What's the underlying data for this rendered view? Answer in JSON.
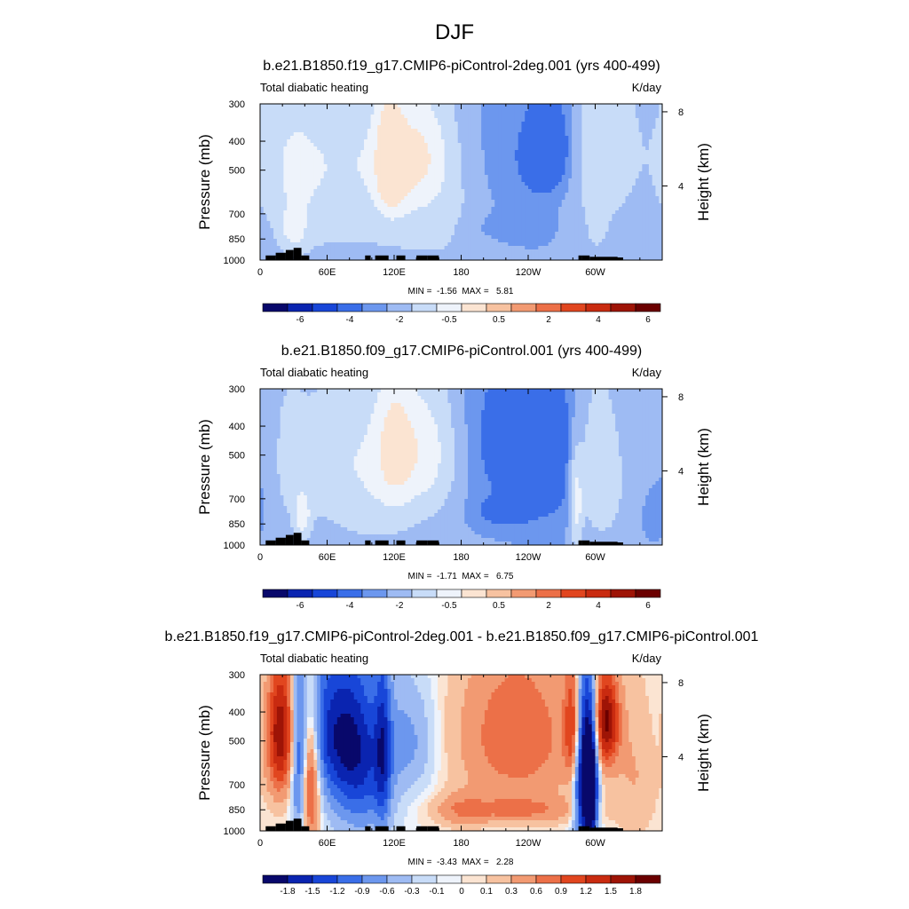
{
  "figure_title": "DJF",
  "colors": {
    "terrain": "#000000",
    "frame": "#000000",
    "palette": [
      "#08086b",
      "#0a24b0",
      "#1846d8",
      "#3a6ee8",
      "#6c97ee",
      "#9ebbf3",
      "#c8dcf8",
      "#eef3fb",
      "#fbe4d2",
      "#f7c2a0",
      "#f29a72",
      "#ec7048",
      "#e1461f",
      "#c92b10",
      "#9e1406",
      "#6b0000"
    ]
  },
  "chart_data": [
    {
      "type": "heatmap",
      "id": "p1",
      "title": "b.e21.B1850.f19_g17.CMIP6-piControl-2deg.001 (yrs 400-499)",
      "left_label": "Total diabatic heating",
      "right_label": "K/day",
      "xlabel": "",
      "ylabel": "Pressure (mb)",
      "ylabel_right": "Height (km)",
      "x_ticks": [
        "0",
        "60E",
        "120E",
        "180",
        "120W",
        "60W"
      ],
      "x_tick_values": [
        0,
        60,
        120,
        180,
        240,
        300
      ],
      "xlim": [
        0,
        360
      ],
      "y_ticks": [
        "300",
        "400",
        "500",
        "700",
        "850",
        "1000"
      ],
      "y_tick_values": [
        300,
        400,
        500,
        700,
        850,
        1000
      ],
      "ylim": [
        1000,
        300
      ],
      "y_right_ticks": [
        "8",
        "4"
      ],
      "y_right_tick_values": [
        8,
        4
      ],
      "stats": "MIN =  -1.56  MAX =   5.81",
      "colorbar_labels": [
        "-6",
        "-4",
        "-2",
        "-0.5",
        "0.5",
        "2",
        "4",
        "6"
      ],
      "base": 0.6,
      "blobs": [
        [
          25,
          520,
          22,
          280,
          2.6
        ],
        [
          30,
          800,
          8,
          90,
          2.5
        ],
        [
          85,
          420,
          40,
          160,
          1.8
        ],
        [
          70,
          650,
          40,
          250,
          1.4
        ],
        [
          115,
          420,
          8,
          160,
          3.2
        ],
        [
          120,
          500,
          10,
          120,
          3.8
        ],
        [
          145,
          440,
          18,
          140,
          3.6
        ],
        [
          140,
          600,
          40,
          300,
          1.6
        ],
        [
          175,
          750,
          30,
          250,
          0.8
        ],
        [
          265,
          420,
          15,
          120,
          -2.4
        ],
        [
          230,
          480,
          40,
          220,
          -1.2
        ],
        [
          215,
          780,
          25,
          60,
          -1.0
        ],
        [
          305,
          450,
          25,
          250,
          3.0
        ],
        [
          302,
          780,
          6,
          100,
          1.8
        ],
        [
          330,
          800,
          25,
          200,
          -0.4
        ],
        [
          12,
          720,
          10,
          150,
          -0.5
        ]
      ]
    },
    {
      "type": "heatmap",
      "id": "p2",
      "title": "b.e21.B1850.f09_g17.CMIP6-piControl.001 (yrs 400-499)",
      "left_label": "Total diabatic heating",
      "right_label": "K/day",
      "xlabel": "",
      "ylabel": "Pressure (mb)",
      "ylabel_right": "Height (km)",
      "x_ticks": [
        "0",
        "60E",
        "120E",
        "180",
        "120W",
        "60W"
      ],
      "x_tick_values": [
        0,
        60,
        120,
        180,
        240,
        300
      ],
      "xlim": [
        0,
        360
      ],
      "y_ticks": [
        "300",
        "400",
        "500",
        "700",
        "850",
        "1000"
      ],
      "y_tick_values": [
        300,
        400,
        500,
        700,
        850,
        1000
      ],
      "ylim": [
        1000,
        300
      ],
      "y_right_ticks": [
        "8",
        "4"
      ],
      "y_right_tick_values": [
        8,
        4
      ],
      "stats": "MIN =  -1.71  MAX =   6.75",
      "colorbar_labels": [
        "-6",
        "-4",
        "-2",
        "-0.5",
        "0.5",
        "2",
        "4",
        "6"
      ],
      "base": 0.6,
      "blobs": [
        [
          22,
          520,
          15,
          300,
          1.2
        ],
        [
          38,
          800,
          5,
          100,
          4.0
        ],
        [
          85,
          500,
          40,
          200,
          2.2
        ],
        [
          120,
          450,
          12,
          180,
          3.6
        ],
        [
          150,
          480,
          20,
          180,
          3.8
        ],
        [
          100,
          700,
          40,
          300,
          1.5
        ],
        [
          240,
          450,
          50,
          220,
          -2.0
        ],
        [
          220,
          780,
          20,
          60,
          -1.6
        ],
        [
          280,
          700,
          20,
          200,
          -0.6
        ],
        [
          283,
          720,
          4,
          180,
          4.5
        ],
        [
          300,
          550,
          12,
          220,
          3.0
        ],
        [
          315,
          600,
          20,
          300,
          1.6
        ],
        [
          5,
          500,
          8,
          200,
          -0.7
        ],
        [
          350,
          780,
          15,
          150,
          -0.7
        ]
      ]
    },
    {
      "type": "heatmap",
      "id": "p3",
      "title": "b.e21.B1850.f19_g17.CMIP6-piControl-2deg.001 - b.e21.B1850.f09_g17.CMIP6-piControl.001",
      "left_label": "Total diabatic heating",
      "right_label": "K/day",
      "xlabel": "",
      "ylabel": "Pressure (mb)",
      "ylabel_right": "Height (km)",
      "x_ticks": [
        "0",
        "60E",
        "120E",
        "180",
        "120W",
        "60W"
      ],
      "x_tick_values": [
        0,
        60,
        120,
        180,
        240,
        300
      ],
      "xlim": [
        0,
        360
      ],
      "y_ticks": [
        "300",
        "400",
        "500",
        "700",
        "850",
        "1000"
      ],
      "y_tick_values": [
        300,
        400,
        500,
        700,
        850,
        1000
      ],
      "ylim": [
        1000,
        300
      ],
      "y_right_ticks": [
        "8",
        "4"
      ],
      "y_right_tick_values": [
        8,
        4
      ],
      "stats": "MIN =  -3.43  MAX =   2.28",
      "colorbar_labels": [
        "-1.8",
        "-1.5",
        "-1.2",
        "-0.9",
        "-0.6",
        "-0.3",
        "-0.1",
        "0",
        "0.1",
        "0.3",
        "0.6",
        "0.9",
        "1.2",
        "1.5",
        "1.8"
      ],
      "base": 0.0,
      "blobs": [
        [
          18,
          470,
          10,
          180,
          2.0
        ],
        [
          45,
          650,
          6,
          250,
          1.5
        ],
        [
          35,
          600,
          5,
          300,
          -1.2
        ],
        [
          70,
          450,
          25,
          200,
          -1.5
        ],
        [
          90,
          700,
          20,
          250,
          -1.0
        ],
        [
          110,
          550,
          5,
          300,
          -0.9
        ],
        [
          135,
          500,
          15,
          150,
          -0.6
        ],
        [
          180,
          850,
          15,
          80,
          0.4
        ],
        [
          230,
          480,
          35,
          200,
          0.9
        ],
        [
          230,
          850,
          40,
          60,
          0.6
        ],
        [
          280,
          450,
          5,
          150,
          1.2
        ],
        [
          290,
          650,
          6,
          300,
          -2.4
        ],
        [
          297,
          700,
          4,
          250,
          -2.0
        ],
        [
          310,
          430,
          8,
          110,
          1.8
        ],
        [
          335,
          650,
          15,
          250,
          0.3
        ],
        [
          5,
          450,
          8,
          200,
          -0.3
        ]
      ]
    }
  ]
}
